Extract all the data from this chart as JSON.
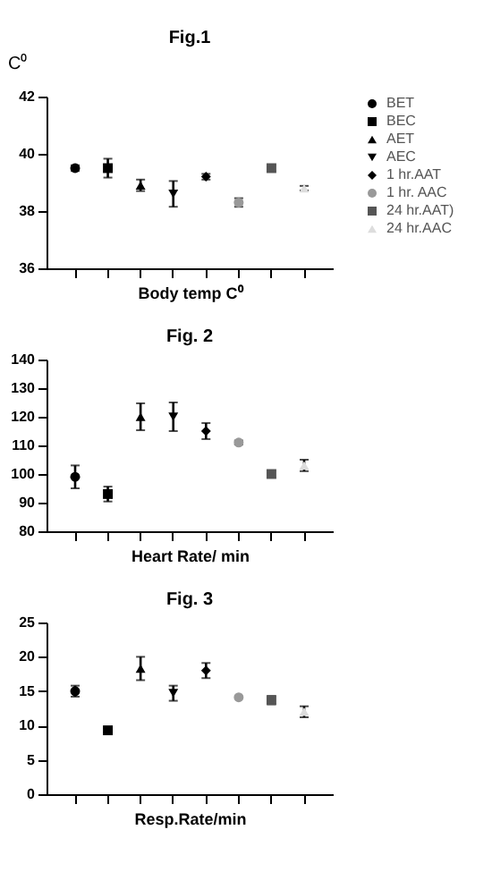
{
  "chart_data": [
    {
      "type": "scatter",
      "title": "Fig.1",
      "ylabel": "C⁰",
      "xlabel": "Body temp C⁰",
      "categories": [
        null,
        null,
        null,
        null,
        null,
        null,
        null,
        null
      ],
      "ylim": [
        36,
        42
      ],
      "yticks": [
        36,
        38,
        40,
        42
      ],
      "grid": false,
      "legend": "right",
      "tick_labels": "y",
      "series": [
        {
          "name": "BET",
          "color": "#000000",
          "marker": "circle",
          "values": [
            39.5,
            null,
            null,
            null,
            null,
            null,
            null,
            null
          ],
          "errors": [
            0.1,
            null,
            null,
            null,
            null,
            null,
            null,
            null
          ]
        },
        {
          "name": "BEC",
          "color": "#000000",
          "marker": "square",
          "values": [
            null,
            39.5,
            null,
            null,
            null,
            null,
            null,
            null
          ],
          "errors": [
            null,
            0.33,
            null,
            null,
            null,
            null,
            null,
            null
          ]
        },
        {
          "name": "AET",
          "color": "#000000",
          "marker": "triangle",
          "values": [
            null,
            null,
            38.9,
            null,
            null,
            null,
            null,
            null
          ],
          "errors": [
            null,
            null,
            0.2,
            null,
            null,
            null,
            null,
            null
          ]
        },
        {
          "name": "AEC",
          "color": "#000000",
          "marker": "triangle-down",
          "values": [
            null,
            null,
            null,
            38.6,
            null,
            null,
            null,
            null
          ],
          "errors": [
            null,
            null,
            null,
            0.45,
            null,
            null,
            null,
            null
          ]
        },
        {
          "name": "1 hr.AAT",
          "color": "#000000",
          "marker": "diamond",
          "values": [
            null,
            null,
            null,
            null,
            39.2,
            null,
            null,
            null
          ],
          "errors": [
            null,
            null,
            null,
            null,
            0.1,
            null,
            null,
            null
          ]
        },
        {
          "name": "1 hr. AAC",
          "color": "#999999",
          "marker": "circle",
          "values": [
            null,
            null,
            null,
            null,
            null,
            38.3,
            null,
            null
          ],
          "errors": [
            null,
            null,
            null,
            null,
            null,
            0.15,
            null,
            null
          ]
        },
        {
          "name": "24 hr.AAT)",
          "color": "#555555",
          "marker": "square",
          "values": [
            null,
            null,
            null,
            null,
            null,
            null,
            39.5,
            null
          ],
          "errors": [
            null,
            null,
            null,
            null,
            null,
            null,
            0.1,
            null
          ]
        },
        {
          "name": "24 hr.AAC",
          "color": "#dddddd",
          "marker": "triangle",
          "values": [
            null,
            null,
            null,
            null,
            null,
            null,
            null,
            38.8
          ],
          "errors": [
            null,
            null,
            null,
            null,
            null,
            null,
            null,
            0.08
          ]
        }
      ]
    },
    {
      "type": "scatter",
      "title": "Fig. 2",
      "xlabel": "Heart Rate/ min",
      "categories": [
        null,
        null,
        null,
        null,
        null,
        null,
        null,
        null
      ],
      "ylim": [
        80,
        140
      ],
      "yticks": [
        80,
        90,
        100,
        110,
        120,
        130,
        140
      ],
      "grid": false,
      "legend": "right",
      "tick_labels": "y",
      "series": [
        {
          "name": "BET",
          "color": "#000000",
          "marker": "circle",
          "values": [
            99,
            null,
            null,
            null,
            null,
            null,
            null,
            null
          ],
          "errors": [
            4,
            null,
            null,
            null,
            null,
            null,
            null,
            null
          ]
        },
        {
          "name": "BEC",
          "color": "#000000",
          "marker": "square",
          "values": [
            null,
            93,
            null,
            null,
            null,
            null,
            null,
            null
          ],
          "errors": [
            null,
            2.6,
            null,
            null,
            null,
            null,
            null,
            null
          ]
        },
        {
          "name": "AET",
          "color": "#000000",
          "marker": "triangle",
          "values": [
            null,
            null,
            120,
            null,
            null,
            null,
            null,
            null
          ],
          "errors": [
            null,
            null,
            4.7,
            null,
            null,
            null,
            null,
            null
          ]
        },
        {
          "name": "AEC",
          "color": "#000000",
          "marker": "triangle-down",
          "values": [
            null,
            null,
            null,
            120,
            null,
            null,
            null,
            null
          ],
          "errors": [
            null,
            null,
            null,
            5,
            null,
            null,
            null,
            null
          ]
        },
        {
          "name": "1 hr.AAT",
          "color": "#000000",
          "marker": "diamond",
          "values": [
            null,
            null,
            null,
            null,
            115,
            null,
            null,
            null
          ],
          "errors": [
            null,
            null,
            null,
            null,
            2.8,
            null,
            null,
            null
          ]
        },
        {
          "name": "1 hr. AAC",
          "color": "#999999",
          "marker": "circle",
          "values": [
            null,
            null,
            null,
            null,
            null,
            111,
            null,
            null
          ],
          "errors": [
            null,
            null,
            null,
            null,
            null,
            0.7,
            null,
            null
          ]
        },
        {
          "name": "24 hr.AAT)",
          "color": "#555555",
          "marker": "square",
          "values": [
            null,
            null,
            null,
            null,
            null,
            null,
            100,
            null
          ],
          "errors": [
            null,
            null,
            null,
            null,
            null,
            null,
            1.2,
            null
          ]
        },
        {
          "name": "24 hr.AAC",
          "color": "#dddddd",
          "marker": "triangle",
          "values": [
            null,
            null,
            null,
            null,
            null,
            null,
            null,
            103
          ],
          "errors": [
            null,
            null,
            null,
            null,
            null,
            null,
            null,
            2
          ]
        }
      ]
    },
    {
      "type": "scatter",
      "title": "Fig. 3",
      "xlabel": "Resp.Rate/min",
      "categories": [
        null,
        null,
        null,
        null,
        null,
        null,
        null,
        null
      ],
      "ylim": [
        0,
        25
      ],
      "yticks": [
        0,
        5,
        10,
        15,
        20,
        25
      ],
      "grid": false,
      "legend": "right",
      "tick_labels": "y",
      "series": [
        {
          "name": "BET",
          "color": "#000000",
          "marker": "circle",
          "values": [
            15,
            null,
            null,
            null,
            null,
            null,
            null,
            null
          ],
          "errors": [
            0.8,
            null,
            null,
            null,
            null,
            null,
            null,
            null
          ]
        },
        {
          "name": "BEC",
          "color": "#000000",
          "marker": "square",
          "values": [
            null,
            9.3,
            null,
            null,
            null,
            null,
            null,
            null
          ],
          "errors": [
            null,
            0.3,
            null,
            null,
            null,
            null,
            null,
            null
          ]
        },
        {
          "name": "AET",
          "color": "#000000",
          "marker": "triangle",
          "values": [
            null,
            null,
            18.3,
            null,
            null,
            null,
            null,
            null
          ],
          "errors": [
            null,
            null,
            1.7,
            null,
            null,
            null,
            null,
            null
          ]
        },
        {
          "name": "AEC",
          "color": "#000000",
          "marker": "triangle-down",
          "values": [
            null,
            null,
            null,
            14.7,
            null,
            null,
            null,
            null
          ],
          "errors": [
            null,
            null,
            null,
            1.1,
            null,
            null,
            null,
            null
          ]
        },
        {
          "name": "1 hr.AAT",
          "color": "#000000",
          "marker": "diamond",
          "values": [
            null,
            null,
            null,
            null,
            18,
            null,
            null,
            null
          ],
          "errors": [
            null,
            null,
            null,
            null,
            1.1,
            null,
            null,
            null
          ]
        },
        {
          "name": "1 hr. AAC",
          "color": "#999999",
          "marker": "circle",
          "values": [
            null,
            null,
            null,
            null,
            null,
            14.1,
            null,
            null
          ],
          "errors": [
            null,
            null,
            null,
            null,
            null,
            null,
            null,
            null
          ]
        },
        {
          "name": "24 hr.AAT)",
          "color": "#555555",
          "marker": "square",
          "values": [
            null,
            null,
            null,
            null,
            null,
            null,
            13.7,
            null
          ],
          "errors": [
            null,
            null,
            null,
            null,
            null,
            null,
            0.6,
            null
          ]
        },
        {
          "name": "24 hr.AAC",
          "color": "#dddddd",
          "marker": "triangle",
          "values": [
            null,
            null,
            null,
            null,
            null,
            null,
            null,
            12
          ],
          "errors": [
            null,
            null,
            null,
            null,
            null,
            null,
            null,
            0.8
          ]
        }
      ]
    }
  ]
}
